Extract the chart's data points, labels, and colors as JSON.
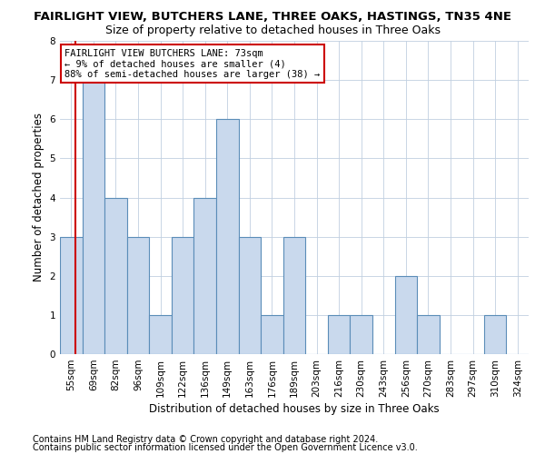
{
  "title1": "FAIRLIGHT VIEW, BUTCHERS LANE, THREE OAKS, HASTINGS, TN35 4NE",
  "title2": "Size of property relative to detached houses in Three Oaks",
  "xlabel": "Distribution of detached houses by size in Three Oaks",
  "ylabel": "Number of detached properties",
  "categories": [
    "55sqm",
    "69sqm",
    "82sqm",
    "96sqm",
    "109sqm",
    "122sqm",
    "136sqm",
    "149sqm",
    "163sqm",
    "176sqm",
    "189sqm",
    "203sqm",
    "216sqm",
    "230sqm",
    "243sqm",
    "256sqm",
    "270sqm",
    "283sqm",
    "297sqm",
    "310sqm",
    "324sqm"
  ],
  "values": [
    3,
    7,
    4,
    3,
    1,
    3,
    4,
    6,
    3,
    1,
    3,
    0,
    1,
    1,
    0,
    2,
    1,
    0,
    0,
    1,
    0
  ],
  "bar_color": "#c9d9ed",
  "bar_edge_color": "#5b8db8",
  "redline_x": 0.18,
  "annotation_line1": "FAIRLIGHT VIEW BUTCHERS LANE: 73sqm",
  "annotation_line2": "← 9% of detached houses are smaller (4)",
  "annotation_line3": "88% of semi-detached houses are larger (38) →",
  "annotation_box_color": "#ffffff",
  "annotation_box_edge_color": "#cc0000",
  "redline_color": "#cc0000",
  "ylim": [
    0,
    8
  ],
  "yticks": [
    0,
    1,
    2,
    3,
    4,
    5,
    6,
    7,
    8
  ],
  "footer1": "Contains HM Land Registry data © Crown copyright and database right 2024.",
  "footer2": "Contains public sector information licensed under the Open Government Licence v3.0.",
  "background_color": "#ffffff",
  "grid_color": "#c0cfe0",
  "title1_fontsize": 9.5,
  "title2_fontsize": 9,
  "axis_label_fontsize": 8.5,
  "tick_fontsize": 7.5,
  "annotation_fontsize": 7.5,
  "footer_fontsize": 7
}
